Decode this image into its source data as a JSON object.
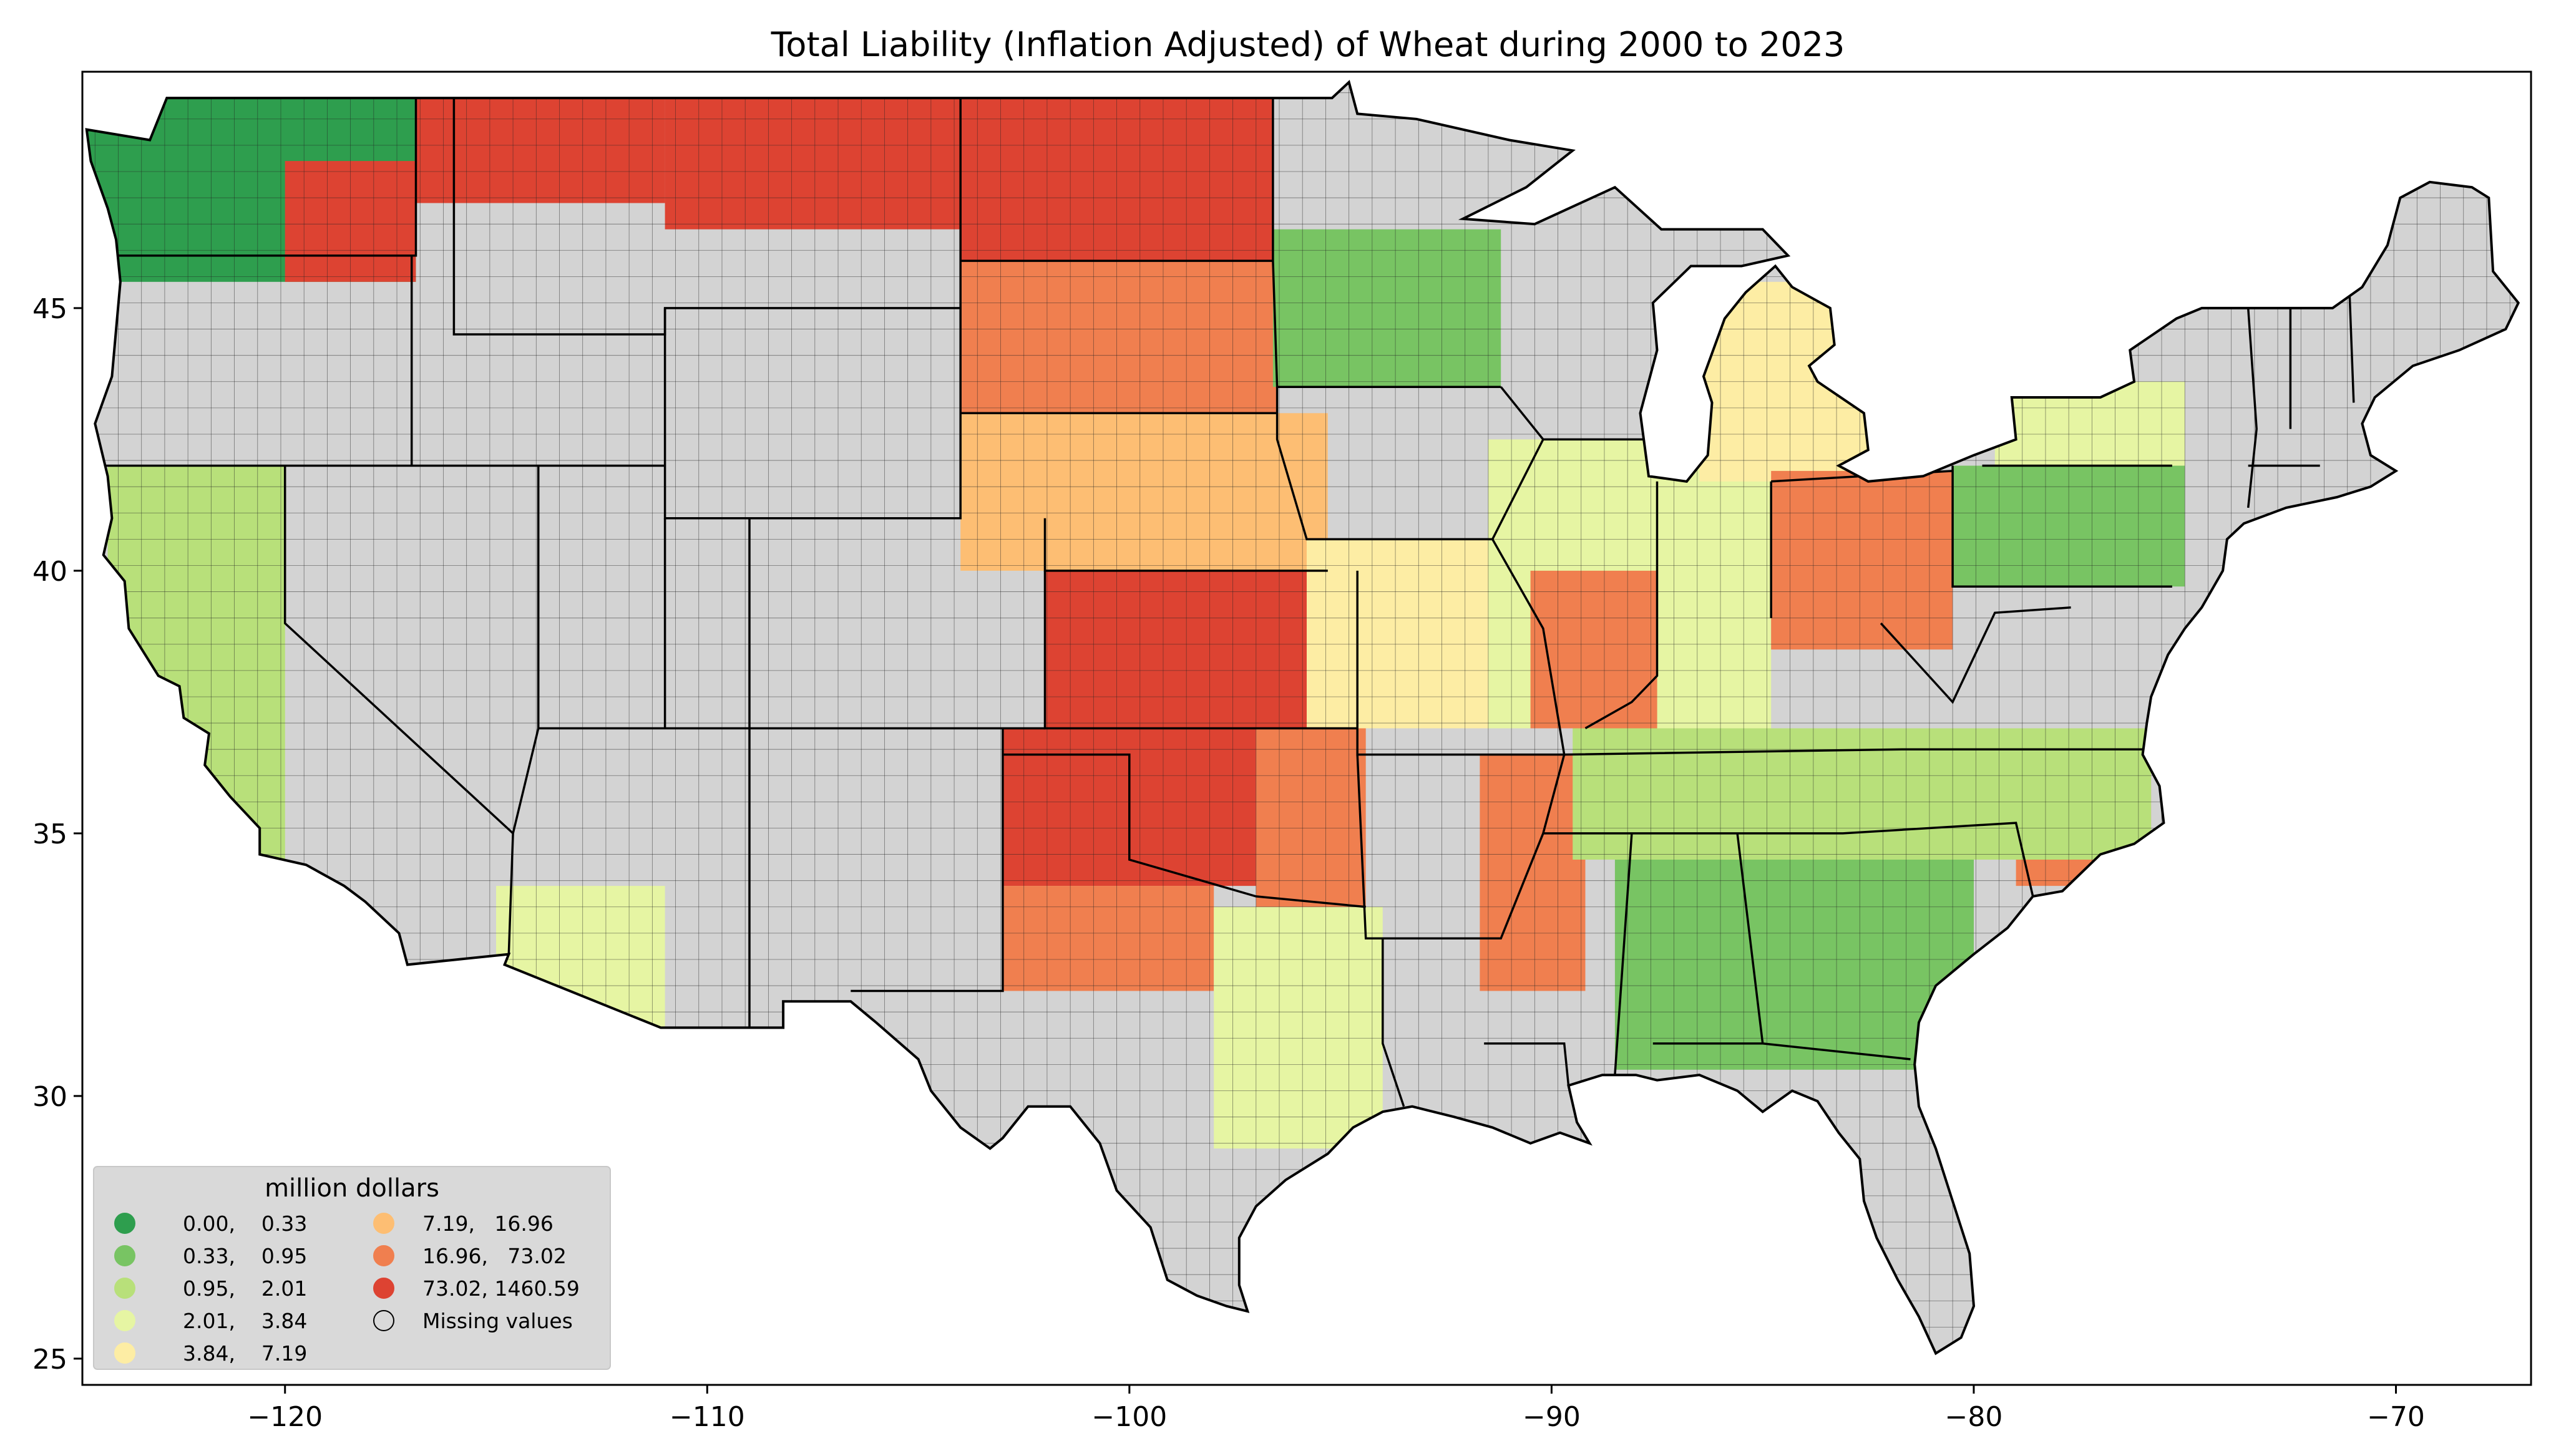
{
  "title": "Total Liability  (Inflation Adjusted) of Wheat during 2000 to 2023",
  "axes": {
    "x_ticks": [
      -120,
      -110,
      -100,
      -90,
      -80,
      -70
    ],
    "x_tick_labels": [
      "−120",
      "−110",
      "−100",
      "−90",
      "−80",
      "−70"
    ],
    "y_ticks": [
      25,
      30,
      35,
      40,
      45
    ],
    "y_tick_labels": [
      "25",
      "30",
      "35",
      "40",
      "45"
    ],
    "xlim": [
      -124.8,
      -66.8
    ],
    "ylim": [
      24.5,
      49.5
    ]
  },
  "legend": {
    "title": "million dollars",
    "placement": "lower-left",
    "items": [
      {
        "label": "0.00,    0.33",
        "color": "#2e9e4e"
      },
      {
        "label": "0.33,    0.95",
        "color": "#78c463"
      },
      {
        "label": "0.95,    2.01",
        "color": "#b8e07a"
      },
      {
        "label": "2.01,    3.84",
        "color": "#e6f5a3"
      },
      {
        "label": "3.84,    7.19",
        "color": "#fdeda4"
      },
      {
        "label": "7.19,   16.96",
        "color": "#fdbe73"
      },
      {
        "label": "16.96,   73.02",
        "color": "#f07f4f"
      },
      {
        "label": "73.02, 1460.59",
        "color": "#dd4332"
      },
      {
        "label": "Missing values",
        "color": "none"
      }
    ]
  },
  "colors": {
    "missing": "#d3d3d3",
    "state_border": "#000000",
    "county_border": "#222222"
  },
  "chart_data": {
    "type": "choropleth",
    "title": "Total Liability  (Inflation Adjusted) of Wheat during 2000 to 2023",
    "unit": "million dollars",
    "bins": [
      [
        0.0,
        0.33
      ],
      [
        0.33,
        0.95
      ],
      [
        0.95,
        2.01
      ],
      [
        2.01,
        3.84
      ],
      [
        3.84,
        7.19
      ],
      [
        7.19,
        16.96
      ],
      [
        16.96,
        73.02
      ],
      [
        73.02,
        1460.59
      ]
    ],
    "regions": [
      {
        "lon": [
          -124.7,
          -116.9
        ],
        "lat": [
          45.5,
          49.0
        ],
        "bin": 0
      },
      {
        "lon": [
          -120.0,
          -116.9
        ],
        "lat": [
          45.5,
          47.8
        ],
        "bin": 7
      },
      {
        "lon": [
          -116.9,
          -111.0
        ],
        "lat": [
          47.0,
          49.0
        ],
        "bin": 7
      },
      {
        "lon": [
          -111.0,
          -104.0
        ],
        "lat": [
          46.5,
          49.0
        ],
        "bin": 7
      },
      {
        "lon": [
          -104.0,
          -96.6
        ],
        "lat": [
          45.9,
          49.0
        ],
        "bin": 7
      },
      {
        "lon": [
          -104.0,
          -96.5
        ],
        "lat": [
          43.0,
          45.9
        ],
        "bin": 6
      },
      {
        "lon": [
          -104.0,
          -95.3
        ],
        "lat": [
          40.0,
          43.0
        ],
        "bin": 5
      },
      {
        "lon": [
          -102.0,
          -94.6
        ],
        "lat": [
          37.0,
          40.0
        ],
        "bin": 7
      },
      {
        "lon": [
          -103.0,
          -97.0
        ],
        "lat": [
          34.0,
          37.0
        ],
        "bin": 7
      },
      {
        "lon": [
          -97.0,
          -94.4
        ],
        "lat": [
          33.6,
          37.0
        ],
        "bin": 6
      },
      {
        "lon": [
          -103.0,
          -98.0
        ],
        "lat": [
          32.0,
          34.0
        ],
        "bin": 6
      },
      {
        "lon": [
          -98.0,
          -94.0
        ],
        "lat": [
          29.0,
          33.6
        ],
        "bin": 3
      },
      {
        "lon": [
          -96.6,
          -91.2
        ],
        "lat": [
          43.5,
          46.5
        ],
        "bin": 1
      },
      {
        "lon": [
          -95.8,
          -90.2
        ],
        "lat": [
          37.0,
          40.6
        ],
        "bin": 4
      },
      {
        "lon": [
          -91.5,
          -84.8
        ],
        "lat": [
          37.0,
          42.5
        ],
        "bin": 3
      },
      {
        "lon": [
          -90.5,
          -87.5
        ],
        "lat": [
          37.0,
          40.0
        ],
        "bin": 6
      },
      {
        "lon": [
          -86.5,
          -82.5
        ],
        "lat": [
          41.7,
          45.5
        ],
        "bin": 4
      },
      {
        "lon": [
          -84.8,
          -80.5
        ],
        "lat": [
          38.5,
          41.9
        ],
        "bin": 6
      },
      {
        "lon": [
          -80.5,
          -75.0
        ],
        "lat": [
          39.7,
          42.0
        ],
        "bin": 1
      },
      {
        "lon": [
          -79.5,
          -75.0
        ],
        "lat": [
          42.0,
          43.6
        ],
        "bin": 3
      },
      {
        "lon": [
          -91.7,
          -89.2
        ],
        "lat": [
          32.0,
          36.5
        ],
        "bin": 6
      },
      {
        "lon": [
          -79.0,
          -75.8
        ],
        "lat": [
          34.0,
          36.6
        ],
        "bin": 6
      },
      {
        "lon": [
          -89.5,
          -75.8
        ],
        "lat": [
          34.5,
          37.0
        ],
        "bin": 2
      },
      {
        "lon": [
          -88.5,
          -80.0
        ],
        "lat": [
          30.5,
          34.5
        ],
        "bin": 1
      },
      {
        "lon": [
          -124.2,
          -120.0
        ],
        "lat": [
          32.5,
          42.0
        ],
        "bin": 2
      },
      {
        "lon": [
          -115.0,
          -111.0
        ],
        "lat": [
          31.3,
          34.0
        ],
        "bin": 3
      }
    ]
  }
}
